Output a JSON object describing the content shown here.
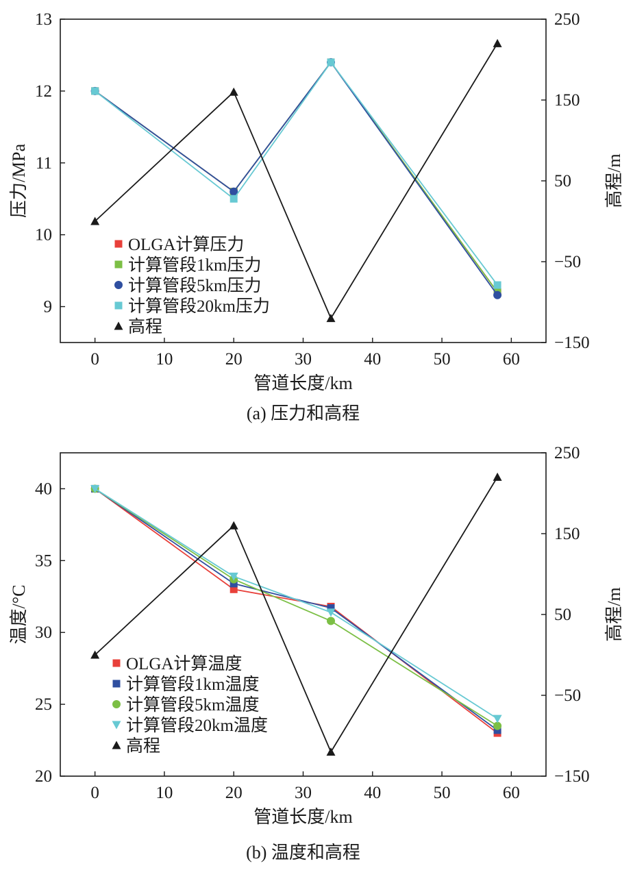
{
  "chart_data": [
    {
      "type": "line",
      "caption": "(a) 压力和高程",
      "xlabel": "管道长度/km",
      "ylabel": "压力/MPa",
      "y2label": "高程/m",
      "xlim": [
        -5,
        65
      ],
      "ylim": [
        8.5,
        13
      ],
      "y2lim": [
        -150,
        250
      ],
      "xticks": [
        0,
        10,
        20,
        30,
        40,
        50,
        60
      ],
      "yticks": [
        9,
        10,
        11,
        12,
        13
      ],
      "y2ticks": [
        -150,
        -50,
        50,
        150,
        250
      ],
      "y2tick_labels": [
        "−150",
        "−50",
        "50",
        "150",
        "250"
      ],
      "x": [
        0,
        20,
        34,
        58
      ],
      "legend_position": "lower-left",
      "series": [
        {
          "name": "OLGA计算压力",
          "axis": "left",
          "marker": "square",
          "color": "#e8403a",
          "values": [
            12.0,
            10.6,
            12.4,
            9.2
          ]
        },
        {
          "name": "计算管段1km压力",
          "axis": "left",
          "marker": "square",
          "color": "#7cbf45",
          "values": [
            12.0,
            10.6,
            12.4,
            9.2
          ]
        },
        {
          "name": "计算管段5km压力",
          "axis": "left",
          "marker": "circle",
          "color": "#2f4fa0",
          "values": [
            12.0,
            10.6,
            12.4,
            9.16
          ]
        },
        {
          "name": "计算管段20km压力",
          "axis": "left",
          "marker": "square",
          "color": "#67c9d3",
          "values": [
            12.0,
            10.5,
            12.4,
            9.3
          ]
        },
        {
          "name": "高程",
          "axis": "right",
          "marker": "triangle-up",
          "color": "#1a1a1a",
          "values": [
            0,
            160,
            -120,
            220
          ]
        }
      ]
    },
    {
      "type": "line",
      "caption": "(b) 温度和高程",
      "xlabel": "管道长度/km",
      "ylabel": "温度/°C",
      "y2label": "高程/m",
      "xlim": [
        -5,
        65
      ],
      "ylim": [
        20,
        42.5
      ],
      "y2lim": [
        -150,
        250
      ],
      "xticks": [
        0,
        10,
        20,
        30,
        40,
        50,
        60
      ],
      "yticks": [
        20,
        25,
        30,
        35,
        40
      ],
      "y2ticks": [
        -150,
        -50,
        50,
        150,
        250
      ],
      "y2tick_labels": [
        "−150",
        "−50",
        "50",
        "150",
        "250"
      ],
      "x": [
        0,
        20,
        34,
        58
      ],
      "legend_position": "lower-left",
      "series": [
        {
          "name": "OLGA计算温度",
          "axis": "left",
          "marker": "square",
          "color": "#e8403a",
          "values": [
            40.0,
            33.0,
            31.8,
            23.0
          ]
        },
        {
          "name": "计算管段1km温度",
          "axis": "left",
          "marker": "square",
          "color": "#2f4fa0",
          "values": [
            40.0,
            33.4,
            31.7,
            23.2
          ]
        },
        {
          "name": "计算管段5km温度",
          "axis": "left",
          "marker": "circle",
          "color": "#7cbf45",
          "values": [
            40.0,
            33.7,
            30.8,
            23.5
          ]
        },
        {
          "name": "计算管段20km温度",
          "axis": "left",
          "marker": "triangle-down",
          "color": "#67c9d3",
          "values": [
            40.0,
            33.9,
            31.4,
            24.0
          ]
        },
        {
          "name": "高程",
          "axis": "right",
          "marker": "triangle-up",
          "color": "#1a1a1a",
          "values": [
            0,
            160,
            -120,
            220
          ]
        }
      ]
    }
  ]
}
